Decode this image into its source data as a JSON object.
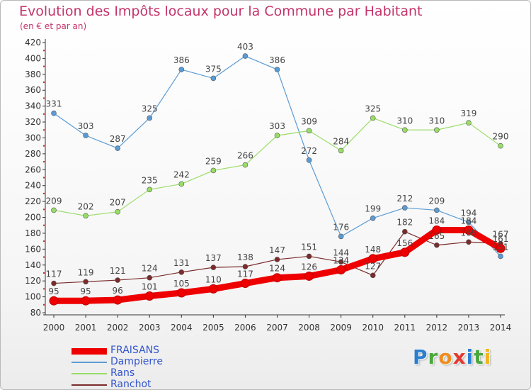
{
  "header": {
    "title": "Evolution des Impôts locaux pour la Commune par Habitant",
    "subtitle": "(en € et par an)"
  },
  "logo": {
    "letters": [
      "P",
      "r",
      "o",
      "x",
      "i",
      "t",
      "i"
    ],
    "colors": [
      "#2a7fd0",
      "#4aa83a",
      "#f08c1e",
      "#e23a2e",
      "#2a7fd0",
      "#4aa83a",
      "#f0b41e"
    ]
  },
  "chart_data": {
    "type": "line",
    "x": [
      "2000",
      "2001",
      "2002",
      "2003",
      "2004",
      "2005",
      "2006",
      "2007",
      "2008",
      "2009",
      "2010",
      "2011",
      "2012",
      "2013",
      "2014"
    ],
    "ylim": [
      80,
      420
    ],
    "yticks": [
      80,
      100,
      120,
      140,
      160,
      180,
      200,
      220,
      240,
      260,
      280,
      300,
      320,
      340,
      360,
      380,
      400,
      420
    ],
    "grid": false,
    "legend_position": "bottom-left",
    "series": [
      {
        "name": "FRAISANS",
        "color": "#ee0000",
        "values": [
          95,
          95,
          96,
          101,
          105,
          110,
          117,
          124,
          126,
          134,
          148,
          156,
          184,
          184,
          161
        ]
      },
      {
        "name": "Dampierre",
        "color": "#5b9bd5",
        "values": [
          331,
          303,
          287,
          325,
          386,
          375,
          403,
          386,
          272,
          176,
          199,
          212,
          209,
          194,
          151
        ]
      },
      {
        "name": "Rans",
        "color": "#99dd66",
        "values": [
          209,
          202,
          207,
          235,
          242,
          259,
          266,
          303,
          309,
          284,
          325,
          310,
          310,
          319,
          290
        ]
      },
      {
        "name": "Ranchot",
        "color": "#7b2b2b",
        "values": [
          117,
          119,
          121,
          124,
          131,
          137,
          138,
          147,
          151,
          144,
          127,
          182,
          165,
          169,
          167
        ]
      }
    ]
  }
}
